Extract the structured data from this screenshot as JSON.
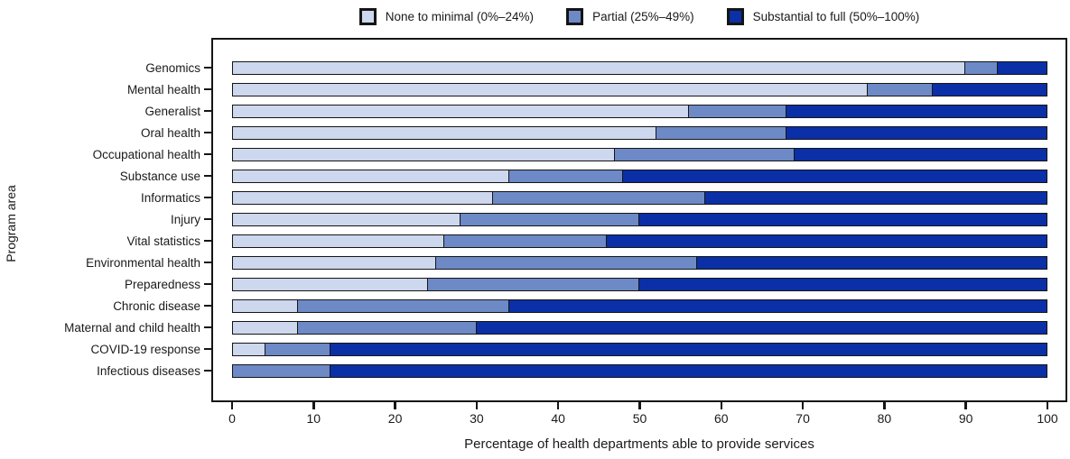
{
  "chart_data": {
    "type": "bar",
    "orientation": "horizontal",
    "stacked": true,
    "xlabel": "Percentage of health departments able to provide services",
    "ylabel": "Program area",
    "xlim": [
      0,
      100
    ],
    "xticks": [
      0,
      10,
      20,
      30,
      40,
      50,
      60,
      70,
      80,
      90,
      100
    ],
    "legend_position": "top-center",
    "grid": false,
    "categories": [
      "Genomics",
      "Mental health",
      "Generalist",
      "Oral health",
      "Occupational health",
      "Substance use",
      "Informatics",
      "Injury",
      "Vital statistics",
      "Environmental health",
      "Preparedness",
      "Chronic disease",
      "Maternal and child health",
      "COVID-19 response",
      "Infectious diseases"
    ],
    "series": [
      {
        "name": "None to minimal (0%–24%)",
        "color": "#cdd7ee",
        "values": [
          90,
          78,
          56,
          52,
          47,
          34,
          32,
          28,
          26,
          25,
          24,
          8,
          8,
          4,
          0
        ]
      },
      {
        "name": "Partial (25%–49%)",
        "color": "#6d89c6",
        "values": [
          4,
          8,
          12,
          16,
          22,
          14,
          26,
          22,
          20,
          32,
          26,
          26,
          22,
          8,
          12
        ]
      },
      {
        "name": "Substantial to full (50%–100%)",
        "color": "#0b2fa6",
        "values": [
          6,
          14,
          32,
          32,
          31,
          52,
          42,
          50,
          54,
          43,
          50,
          66,
          70,
          88,
          88
        ]
      }
    ],
    "frame_color": "#151515",
    "text_color": "#1a1a1a"
  }
}
